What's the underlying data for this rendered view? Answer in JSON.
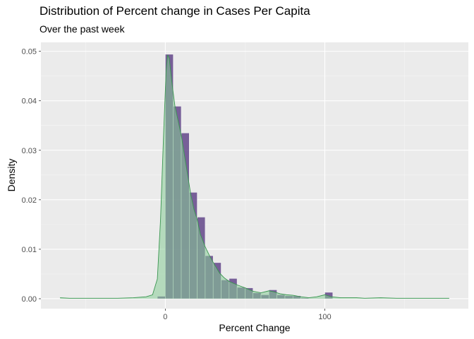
{
  "chart_data": {
    "type": "histogram",
    "title": "Distribution of Percent change in Cases Per Capita",
    "subtitle": "Over the past week",
    "xlabel": "Percent Change",
    "ylabel": "Density",
    "xlim": [
      -78,
      190
    ],
    "ylim": [
      -0.002,
      0.0518
    ],
    "x_ticks": [
      0,
      100
    ],
    "x_tick_labels": [
      "0",
      "100"
    ],
    "x_minor_ticks": [
      -50,
      50,
      150
    ],
    "y_ticks": [
      0,
      0.01,
      0.02,
      0.03,
      0.04,
      0.05
    ],
    "y_tick_labels": [
      "0.00",
      "0.01",
      "0.02",
      "0.03",
      "0.04",
      "0.05"
    ],
    "grid": true,
    "bin_width": 5,
    "bins": [
      {
        "x0": -10,
        "x1": -5,
        "density": 0.0
      },
      {
        "x0": -5,
        "x1": 0,
        "density": 0.0005
      },
      {
        "x0": 0,
        "x1": 5,
        "density": 0.0494
      },
      {
        "x0": 5,
        "x1": 10,
        "density": 0.0389
      },
      {
        "x0": 10,
        "x1": 15,
        "density": 0.0335
      },
      {
        "x0": 15,
        "x1": 20,
        "density": 0.0215
      },
      {
        "x0": 20,
        "x1": 25,
        "density": 0.0165
      },
      {
        "x0": 25,
        "x1": 30,
        "density": 0.0087
      },
      {
        "x0": 30,
        "x1": 35,
        "density": 0.0073
      },
      {
        "x0": 35,
        "x1": 40,
        "density": 0.0038
      },
      {
        "x0": 40,
        "x1": 45,
        "density": 0.0041
      },
      {
        "x0": 45,
        "x1": 50,
        "density": 0.0023
      },
      {
        "x0": 50,
        "x1": 55,
        "density": 0.0022
      },
      {
        "x0": 55,
        "x1": 60,
        "density": 0.0012
      },
      {
        "x0": 60,
        "x1": 65,
        "density": 0.0008
      },
      {
        "x0": 65,
        "x1": 70,
        "density": 0.0018
      },
      {
        "x0": 70,
        "x1": 75,
        "density": 0.0008
      },
      {
        "x0": 75,
        "x1": 80,
        "density": 0.0006
      },
      {
        "x0": 80,
        "x1": 85,
        "density": 0.0006
      },
      {
        "x0": 85,
        "x1": 90,
        "density": 0.0002
      },
      {
        "x0": 90,
        "x1": 95,
        "density": 0.0001
      },
      {
        "x0": 95,
        "x1": 100,
        "density": 0.0001
      },
      {
        "x0": 100,
        "x1": 105,
        "density": 0.0013
      }
    ],
    "density_curve": [
      [
        -66,
        0.0002
      ],
      [
        -60,
        0.0001
      ],
      [
        -50,
        0.0001
      ],
      [
        -40,
        0.0001
      ],
      [
        -30,
        0.0001
      ],
      [
        -20,
        0.0002
      ],
      [
        -12,
        0.0004
      ],
      [
        -8,
        0.0008
      ],
      [
        -5,
        0.004
      ],
      [
        -3,
        0.016
      ],
      [
        -1,
        0.034
      ],
      [
        0.5,
        0.046
      ],
      [
        1.5,
        0.0493
      ],
      [
        2.5,
        0.0485
      ],
      [
        4,
        0.044
      ],
      [
        6,
        0.039
      ],
      [
        8,
        0.036
      ],
      [
        10,
        0.033
      ],
      [
        12,
        0.029
      ],
      [
        14,
        0.025
      ],
      [
        16,
        0.021
      ],
      [
        18,
        0.018
      ],
      [
        20,
        0.016
      ],
      [
        22,
        0.013
      ],
      [
        25,
        0.0105
      ],
      [
        28,
        0.0085
      ],
      [
        31,
        0.0068
      ],
      [
        34,
        0.0052
      ],
      [
        37,
        0.0042
      ],
      [
        40,
        0.0035
      ],
      [
        45,
        0.0028
      ],
      [
        50,
        0.0022
      ],
      [
        55,
        0.0015
      ],
      [
        60,
        0.0012
      ],
      [
        65,
        0.0016
      ],
      [
        68,
        0.0014
      ],
      [
        72,
        0.001
      ],
      [
        76,
        0.0008
      ],
      [
        80,
        0.0007
      ],
      [
        85,
        0.0004
      ],
      [
        90,
        0.0002
      ],
      [
        95,
        0.0004
      ],
      [
        100,
        0.0008
      ],
      [
        104,
        0.0004
      ],
      [
        110,
        0.0002
      ],
      [
        120,
        0.0002
      ],
      [
        125,
        0.0001
      ],
      [
        135,
        0.0002
      ],
      [
        145,
        0.0001
      ],
      [
        160,
        0.0001
      ],
      [
        178,
        0.0001
      ]
    ],
    "colors": {
      "panel_background": "#ebebeb",
      "grid_major": "#ffffff",
      "grid_minor": "#f5f5f5",
      "bar_fill": "#5d3f85",
      "bar_outline": "#f2f2f2",
      "density_fill": "#86cc96",
      "density_line": "#3a9550"
    }
  }
}
